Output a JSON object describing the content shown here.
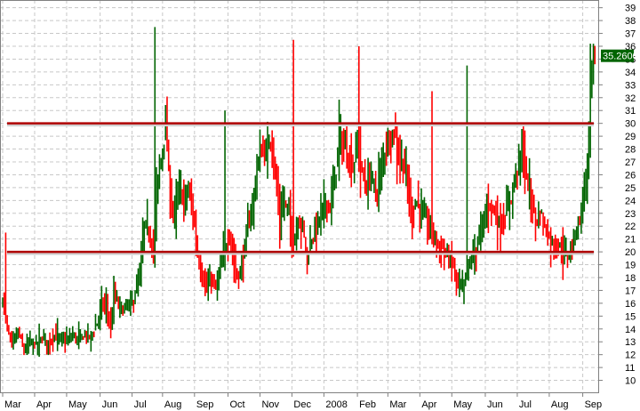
{
  "chart_data": {
    "type": "bar",
    "style": "ohlc-price-bars",
    "x_axis": {
      "tick_labels": [
        "Mar",
        "Apr",
        "May",
        "Jun",
        "Jul",
        "Aug",
        "Sep",
        "Oct",
        "Nov",
        "Dec",
        "2008",
        "Feb",
        "Mar",
        "Apr",
        "May",
        "Jun",
        "Jul",
        "Aug",
        "Sep"
      ],
      "tick_positions": [
        0,
        21,
        42,
        64,
        85,
        105,
        126,
        148,
        169,
        190,
        211,
        233,
        253,
        274,
        295,
        317,
        338,
        359,
        381
      ]
    },
    "y_axis": {
      "position": "right",
      "ticks": [
        10,
        11,
        12,
        13,
        14,
        15,
        16,
        17,
        18,
        19,
        20,
        21,
        22,
        23,
        24,
        25,
        26,
        27,
        28,
        29,
        30,
        31,
        32,
        33,
        34,
        35,
        36,
        37,
        38,
        39
      ],
      "ylim": [
        9,
        39.6
      ]
    },
    "grid": true,
    "colors": {
      "up": "#006400",
      "down": "#ff0000",
      "reference_line": "#b00000",
      "last_price_tag": "#006400"
    },
    "reference_lines": [
      30,
      20
    ],
    "last_price": "35.2600",
    "close_anchors": [
      [
        0,
        16.5
      ],
      [
        3,
        14.0
      ],
      [
        6,
        12.8
      ],
      [
        10,
        13.8
      ],
      [
        14,
        12.3
      ],
      [
        18,
        13.0
      ],
      [
        22,
        12.8
      ],
      [
        26,
        13.3
      ],
      [
        30,
        13.0
      ],
      [
        34,
        13.5
      ],
      [
        38,
        13.2
      ],
      [
        42,
        13.0
      ],
      [
        46,
        13.5
      ],
      [
        50,
        13.2
      ],
      [
        54,
        13.6
      ],
      [
        58,
        13.4
      ],
      [
        62,
        14.5
      ],
      [
        65,
        16.0
      ],
      [
        68,
        15.8
      ],
      [
        71,
        14.0
      ],
      [
        73,
        16.8
      ],
      [
        76,
        15.8
      ],
      [
        79,
        15.5
      ],
      [
        82,
        15.8
      ],
      [
        85,
        16.0
      ],
      [
        88,
        17.2
      ],
      [
        90,
        18.2
      ],
      [
        93,
        22.0
      ],
      [
        96,
        21.5
      ],
      [
        99,
        20.0
      ],
      [
        101,
        24.5
      ],
      [
        103,
        26.5
      ],
      [
        105,
        28.0
      ],
      [
        107,
        30.0
      ],
      [
        110,
        24.0
      ],
      [
        113,
        23.0
      ],
      [
        116,
        25.0
      ],
      [
        119,
        24.0
      ],
      [
        122,
        24.8
      ],
      [
        125,
        23.0
      ],
      [
        128,
        19.8
      ],
      [
        131,
        18.2
      ],
      [
        134,
        17.0
      ],
      [
        137,
        18.0
      ],
      [
        140,
        17.0
      ],
      [
        143,
        18.8
      ],
      [
        146,
        20.2
      ],
      [
        149,
        21.5
      ],
      [
        152,
        19.0
      ],
      [
        155,
        18.0
      ],
      [
        158,
        19.5
      ],
      [
        161,
        22.0
      ],
      [
        164,
        23.5
      ],
      [
        167,
        26.5
      ],
      [
        170,
        28.0
      ],
      [
        173,
        27.5
      ],
      [
        176,
        29.0
      ],
      [
        179,
        26.0
      ],
      [
        182,
        22.5
      ],
      [
        185,
        24.0
      ],
      [
        188,
        23.0
      ],
      [
        191,
        20.5
      ],
      [
        194,
        22.5
      ],
      [
        197,
        22.0
      ],
      [
        200,
        19.5
      ],
      [
        203,
        21.0
      ],
      [
        206,
        22.0
      ],
      [
        209,
        23.0
      ],
      [
        212,
        24.0
      ],
      [
        215,
        23.5
      ],
      [
        218,
        25.5
      ],
      [
        221,
        29.0
      ],
      [
        224,
        28.0
      ],
      [
        227,
        27.5
      ],
      [
        230,
        26.5
      ],
      [
        233,
        28.5
      ],
      [
        236,
        26.0
      ],
      [
        239,
        25.0
      ],
      [
        242,
        26.0
      ],
      [
        245,
        24.5
      ],
      [
        248,
        26.0
      ],
      [
        251,
        28.0
      ],
      [
        254,
        28.8
      ],
      [
        257,
        29.5
      ],
      [
        260,
        27.5
      ],
      [
        263,
        27.0
      ],
      [
        266,
        25.0
      ],
      [
        269,
        23.0
      ],
      [
        272,
        24.0
      ],
      [
        275,
        23.0
      ],
      [
        278,
        22.5
      ],
      [
        281,
        21.5
      ],
      [
        284,
        21.0
      ],
      [
        287,
        20.5
      ],
      [
        290,
        20.0
      ],
      [
        293,
        19.5
      ],
      [
        296,
        19.0
      ],
      [
        299,
        17.5
      ],
      [
        302,
        17.0
      ],
      [
        305,
        18.5
      ],
      [
        308,
        19.5
      ],
      [
        311,
        20.5
      ],
      [
        314,
        21.5
      ],
      [
        317,
        23.0
      ],
      [
        320,
        24.0
      ],
      [
        323,
        23.0
      ],
      [
        326,
        22.0
      ],
      [
        329,
        22.5
      ],
      [
        332,
        23.5
      ],
      [
        335,
        25.0
      ],
      [
        338,
        26.5
      ],
      [
        341,
        28.0
      ],
      [
        344,
        26.0
      ],
      [
        347,
        24.0
      ],
      [
        350,
        22.5
      ],
      [
        353,
        23.0
      ],
      [
        356,
        22.0
      ],
      [
        359,
        21.0
      ],
      [
        362,
        20.5
      ],
      [
        365,
        20.5
      ],
      [
        368,
        20.0
      ],
      [
        371,
        19.5
      ],
      [
        374,
        20.5
      ],
      [
        377,
        22.0
      ],
      [
        380,
        23.0
      ],
      [
        382,
        25.5
      ],
      [
        384,
        26.5
      ],
      [
        385,
        29.0
      ],
      [
        386,
        32.5
      ],
      [
        387,
        34.0
      ],
      [
        388,
        35.26
      ]
    ],
    "spikes": [
      [
        2,
        21.5
      ],
      [
        100,
        37.5
      ],
      [
        146,
        31.0
      ],
      [
        191,
        36.5
      ],
      [
        234,
        36.0
      ],
      [
        282,
        32.5
      ],
      [
        305,
        34.5
      ],
      [
        386,
        36.2
      ]
    ]
  }
}
